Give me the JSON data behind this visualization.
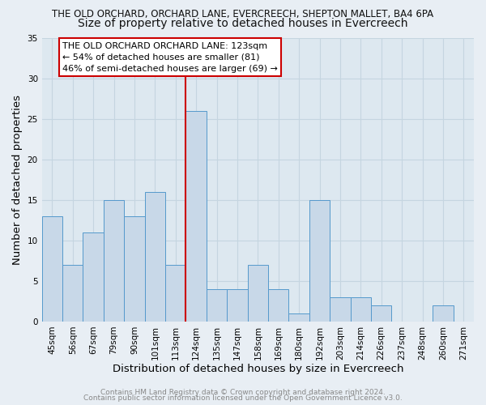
{
  "title": "THE OLD ORCHARD, ORCHARD LANE, EVERCREECH, SHEPTON MALLET, BA4 6PA",
  "subtitle": "Size of property relative to detached houses in Evercreech",
  "xlabel": "Distribution of detached houses by size in Evercreech",
  "ylabel": "Number of detached properties",
  "bin_labels": [
    "45sqm",
    "56sqm",
    "67sqm",
    "79sqm",
    "90sqm",
    "101sqm",
    "113sqm",
    "124sqm",
    "135sqm",
    "147sqm",
    "158sqm",
    "169sqm",
    "180sqm",
    "192sqm",
    "203sqm",
    "214sqm",
    "226sqm",
    "237sqm",
    "248sqm",
    "260sqm",
    "271sqm"
  ],
  "bar_heights": [
    13,
    7,
    11,
    15,
    13,
    16,
    7,
    26,
    4,
    4,
    7,
    4,
    1,
    15,
    3,
    3,
    2,
    0,
    0,
    2,
    0
  ],
  "bar_color": "#c8d8e8",
  "bar_edge_color": "#5599cc",
  "highlight_line_color": "#cc0000",
  "annotation_title": "THE OLD ORCHARD ORCHARD LANE: 123sqm",
  "annotation_line1": "← 54% of detached houses are smaller (81)",
  "annotation_line2": "46% of semi-detached houses are larger (69) →",
  "annotation_box_color": "#ffffff",
  "annotation_box_edge_color": "#cc0000",
  "ylim": [
    0,
    35
  ],
  "yticks": [
    0,
    5,
    10,
    15,
    20,
    25,
    30,
    35
  ],
  "footer1": "Contains HM Land Registry data © Crown copyright and database right 2024.",
  "footer2": "Contains public sector information licensed under the Open Government Licence v3.0.",
  "background_color": "#e8eef4",
  "plot_background_color": "#dde8f0",
  "grid_color": "#c5d5e0",
  "title_fontsize": 8.5,
  "subtitle_fontsize": 10,
  "axis_label_fontsize": 9.5,
  "tick_fontsize": 7.5,
  "annotation_fontsize": 8,
  "footer_fontsize": 6.5
}
